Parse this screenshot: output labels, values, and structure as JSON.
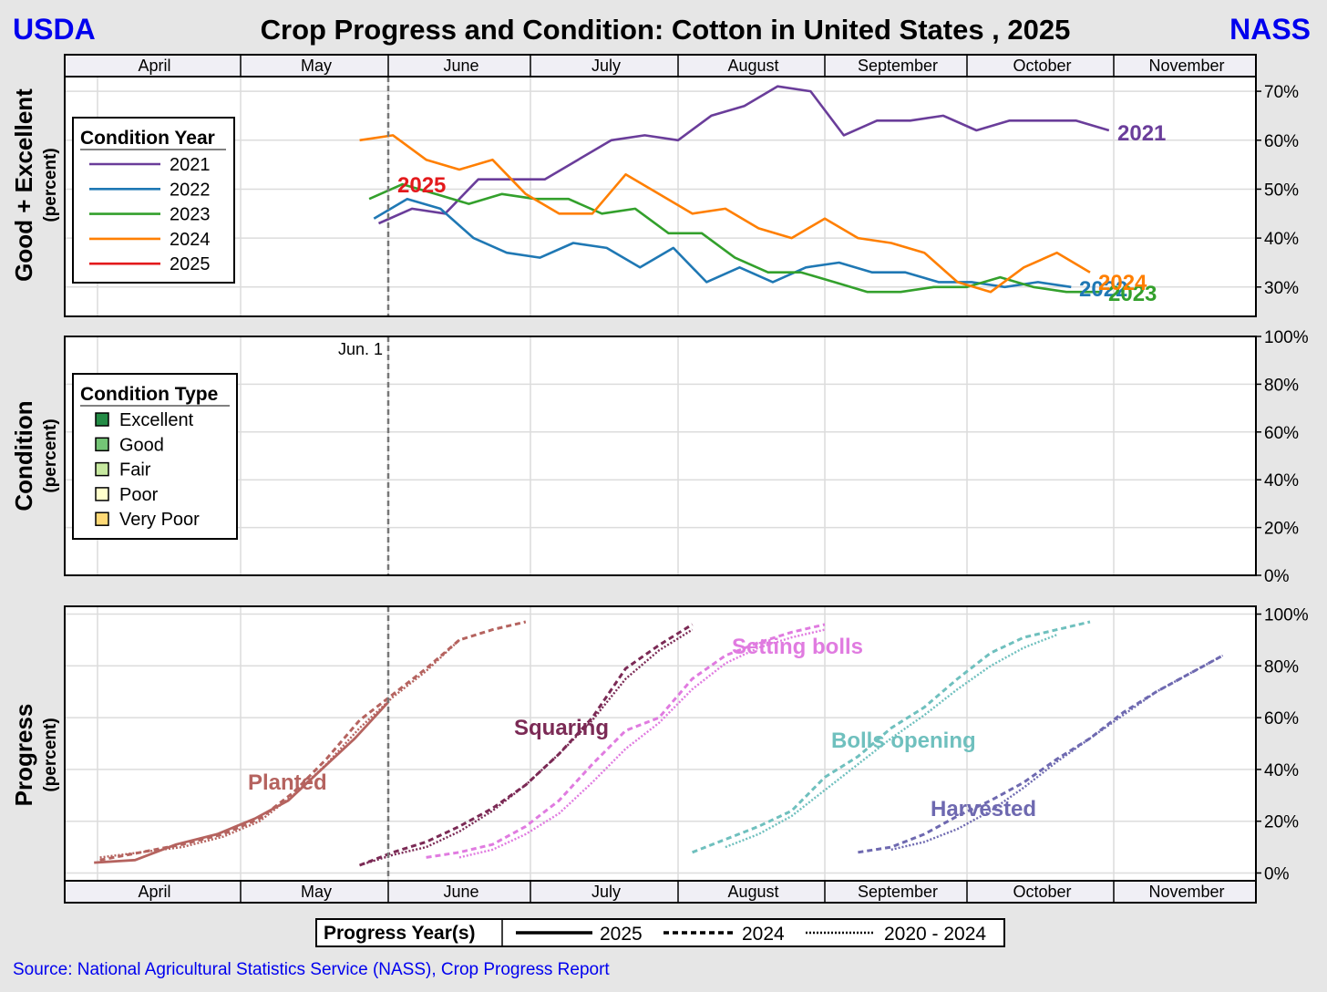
{
  "header": {
    "left_agency": "USDA",
    "title": "Crop Progress and Condition: Cotton in United States , 2025",
    "right_agency": "NASS"
  },
  "months": [
    "April",
    "May",
    "June",
    "July",
    "August",
    "September",
    "October",
    "November"
  ],
  "marker": {
    "label": "Jun.  1"
  },
  "panels": {
    "good_excellent": {
      "ylabel": "Good + Excellent",
      "sublabel": "(percent)",
      "yticks": [
        "30%",
        "40%",
        "50%",
        "60%",
        "70%"
      ]
    },
    "condition": {
      "ylabel": "Condition",
      "sublabel": "(percent)",
      "yticks": [
        "0%",
        "20%",
        "40%",
        "60%",
        "80%",
        "100%"
      ]
    },
    "progress": {
      "ylabel": "Progress",
      "sublabel": "(percent)",
      "yticks": [
        "0%",
        "20%",
        "40%",
        "60%",
        "80%",
        "100%"
      ]
    }
  },
  "legends": {
    "condition_year": {
      "title": "Condition Year",
      "items": [
        "2021",
        "2022",
        "2023",
        "2024",
        "2025"
      ]
    },
    "condition_type": {
      "title": "Condition Type",
      "items": [
        "Excellent",
        "Good",
        "Fair",
        "Poor",
        "Very Poor"
      ]
    },
    "progress_years": {
      "title": "Progress Year(s)",
      "items": [
        "2025",
        "2024",
        "2020 - 2024"
      ]
    }
  },
  "colors": {
    "2021": "#6a3d9a",
    "2022": "#1f78b4",
    "2023": "#33a02c",
    "2024": "#ff7f00",
    "2025": "#e31a1c",
    "Excellent": "#238b45",
    "Good": "#74c476",
    "Fair": "#c7e9a0",
    "Poor": "#ffffcc",
    "Very Poor": "#fed976",
    "Planted": "#b5635f",
    "Squaring": "#7b2a55",
    "Setting bolls": "#e07be0",
    "Bolls opening": "#6fc0be",
    "Harvested": "#6e69b0",
    "agency": "#0000ee",
    "source": "#0000ee"
  },
  "footer": {
    "source": "Source: National Agricultural Statistics Service (NASS), Crop Progress Report"
  },
  "chart_data": [
    {
      "type": "line",
      "title": "Good + Excellent",
      "ylabel": "Good + Excellent (percent)",
      "ylim": [
        24,
        73
      ],
      "x_unit": "week ending",
      "series": [
        {
          "name": "2021",
          "x": [
            "2021-05-30",
            "2021-06-06",
            "2021-06-13",
            "2021-06-20",
            "2021-06-27",
            "2021-07-04",
            "2021-07-11",
            "2021-07-18",
            "2021-07-25",
            "2021-08-01",
            "2021-08-08",
            "2021-08-15",
            "2021-08-22",
            "2021-08-29",
            "2021-09-05",
            "2021-09-12",
            "2021-09-19",
            "2021-09-26",
            "2021-10-03",
            "2021-10-10",
            "2021-10-17",
            "2021-10-24",
            "2021-10-31"
          ],
          "values": [
            43,
            46,
            45,
            52,
            52,
            52,
            56,
            60,
            61,
            60,
            65,
            67,
            71,
            70,
            61,
            64,
            64,
            65,
            62,
            64,
            64,
            64,
            62
          ]
        },
        {
          "name": "2022",
          "x": [
            "2022-05-29",
            "2022-06-05",
            "2022-06-12",
            "2022-06-19",
            "2022-06-26",
            "2022-07-03",
            "2022-07-10",
            "2022-07-17",
            "2022-07-24",
            "2022-07-31",
            "2022-08-07",
            "2022-08-14",
            "2022-08-21",
            "2022-08-28",
            "2022-09-04",
            "2022-09-11",
            "2022-09-18",
            "2022-09-25",
            "2022-10-02",
            "2022-10-09",
            "2022-10-16",
            "2022-10-23"
          ],
          "values": [
            44,
            48,
            46,
            40,
            37,
            36,
            39,
            38,
            34,
            38,
            31,
            34,
            31,
            34,
            35,
            33,
            33,
            31,
            31,
            30,
            31,
            30
          ]
        },
        {
          "name": "2023",
          "x": [
            "2023-05-28",
            "2023-06-04",
            "2023-06-11",
            "2023-06-18",
            "2023-06-25",
            "2023-07-02",
            "2023-07-09",
            "2023-07-16",
            "2023-07-23",
            "2023-07-30",
            "2023-08-06",
            "2023-08-13",
            "2023-08-20",
            "2023-08-27",
            "2023-09-03",
            "2023-09-10",
            "2023-09-17",
            "2023-09-24",
            "2023-10-01",
            "2023-10-08",
            "2023-10-15",
            "2023-10-22",
            "2023-10-29"
          ],
          "values": [
            48,
            51,
            49,
            47,
            49,
            48,
            48,
            45,
            46,
            41,
            41,
            36,
            33,
            33,
            31,
            29,
            29,
            30,
            30,
            32,
            30,
            29,
            29
          ]
        },
        {
          "name": "2024",
          "x": [
            "2024-05-26",
            "2024-06-02",
            "2024-06-09",
            "2024-06-16",
            "2024-06-23",
            "2024-06-30",
            "2024-07-07",
            "2024-07-14",
            "2024-07-21",
            "2024-07-28",
            "2024-08-04",
            "2024-08-11",
            "2024-08-18",
            "2024-08-25",
            "2024-09-01",
            "2024-09-08",
            "2024-09-15",
            "2024-09-22",
            "2024-09-29",
            "2024-10-06",
            "2024-10-13",
            "2024-10-20",
            "2024-10-27"
          ],
          "values": [
            60,
            61,
            56,
            54,
            56,
            49,
            45,
            45,
            53,
            49,
            45,
            46,
            42,
            40,
            44,
            40,
            39,
            37,
            31,
            29,
            34,
            37,
            33
          ]
        },
        {
          "name": "2025",
          "x": [],
          "values": []
        }
      ],
      "annotations": [
        "2021",
        "2022",
        "2023",
        "2024",
        "2025"
      ]
    },
    {
      "type": "area",
      "title": "Condition",
      "ylabel": "Condition (percent)",
      "ylim": [
        0,
        100
      ],
      "series": []
    },
    {
      "type": "line",
      "title": "Progress",
      "ylabel": "Progress (percent)",
      "ylim": [
        -3,
        103
      ],
      "x_unit": "week ending",
      "series": [
        {
          "name": "Planted",
          "year": "2025",
          "x": [
            "2025-04-06",
            "2025-04-13",
            "2025-04-20",
            "2025-04-27",
            "2025-05-04",
            "2025-05-11",
            "2025-05-18",
            "2025-05-25",
            "2025-06-01"
          ],
          "values": [
            4,
            5,
            11,
            15,
            21,
            28,
            40,
            52,
            66
          ]
        },
        {
          "name": "Planted",
          "year": "2024",
          "x": [
            "2024-04-07",
            "2024-04-14",
            "2024-04-21",
            "2024-04-28",
            "2024-05-05",
            "2024-05-12",
            "2024-05-19",
            "2024-05-26",
            "2024-06-02",
            "2024-06-09",
            "2024-06-16",
            "2024-06-23",
            "2024-06-30"
          ],
          "values": [
            5,
            8,
            11,
            15,
            21,
            31,
            44,
            59,
            69,
            79,
            90,
            94,
            97
          ]
        },
        {
          "name": "Planted",
          "year": "2020 - 2024",
          "x": [
            "2024-04-07",
            "2024-04-14",
            "2024-04-21",
            "2024-04-28",
            "2024-05-05",
            "2024-05-12",
            "2024-05-19",
            "2024-05-26",
            "2024-06-02",
            "2024-06-09",
            "2024-06-16"
          ],
          "values": [
            6,
            8,
            10,
            14,
            20,
            30,
            42,
            56,
            68,
            78,
            90
          ]
        },
        {
          "name": "Squaring",
          "year": "2024",
          "x": [
            "2024-05-26",
            "2024-06-02",
            "2024-06-09",
            "2024-06-16",
            "2024-06-23",
            "2024-06-30",
            "2024-07-07",
            "2024-07-14",
            "2024-07-21",
            "2024-07-28",
            "2024-08-04"
          ],
          "values": [
            3,
            8,
            12,
            18,
            25,
            34,
            46,
            60,
            79,
            88,
            96
          ]
        },
        {
          "name": "Squaring",
          "year": "2020 - 2024",
          "x": [
            "2024-05-26",
            "2024-06-02",
            "2024-06-09",
            "2024-06-16",
            "2024-06-23",
            "2024-06-30",
            "2024-07-07",
            "2024-07-14",
            "2024-07-21",
            "2024-07-28",
            "2024-08-04"
          ],
          "values": [
            3,
            7,
            10,
            16,
            24,
            34,
            46,
            59,
            75,
            86,
            94
          ]
        },
        {
          "name": "Setting bolls",
          "year": "2024",
          "x": [
            "2024-06-09",
            "2024-06-16",
            "2024-06-23",
            "2024-06-30",
            "2024-07-07",
            "2024-07-14",
            "2024-07-21",
            "2024-07-28",
            "2024-08-04",
            "2024-08-11",
            "2024-08-18",
            "2024-08-25",
            "2024-09-01"
          ],
          "values": [
            6,
            8,
            11,
            18,
            28,
            42,
            55,
            60,
            75,
            84,
            89,
            93,
            96
          ]
        },
        {
          "name": "Setting bolls",
          "year": "2020 - 2024",
          "x": [
            "2024-06-16",
            "2024-06-23",
            "2024-06-30",
            "2024-07-07",
            "2024-07-14",
            "2024-07-21",
            "2024-07-28",
            "2024-08-04",
            "2024-08-11",
            "2024-08-18",
            "2024-08-25",
            "2024-09-01"
          ],
          "values": [
            6,
            9,
            15,
            23,
            35,
            48,
            58,
            71,
            81,
            87,
            91,
            94
          ]
        },
        {
          "name": "Bolls opening",
          "year": "2024",
          "x": [
            "2024-08-04",
            "2024-08-11",
            "2024-08-18",
            "2024-08-25",
            "2024-09-01",
            "2024-09-08",
            "2024-09-15",
            "2024-09-22",
            "2024-09-29",
            "2024-10-06",
            "2024-10-13",
            "2024-10-20",
            "2024-10-27"
          ],
          "values": [
            8,
            13,
            18,
            24,
            37,
            45,
            56,
            64,
            75,
            85,
            91,
            94,
            97
          ]
        },
        {
          "name": "Bolls opening",
          "year": "2020 - 2024",
          "x": [
            "2024-08-11",
            "2024-08-18",
            "2024-08-25",
            "2024-09-01",
            "2024-09-08",
            "2024-09-15",
            "2024-09-22",
            "2024-09-29",
            "2024-10-06",
            "2024-10-13",
            "2024-10-20"
          ],
          "values": [
            10,
            15,
            22,
            32,
            42,
            52,
            61,
            71,
            80,
            87,
            92
          ]
        },
        {
          "name": "Harvested",
          "year": "2024",
          "x": [
            "2024-09-08",
            "2024-09-15",
            "2024-09-22",
            "2024-09-29",
            "2024-10-06",
            "2024-10-13",
            "2024-10-20",
            "2024-10-27",
            "2024-11-03",
            "2024-11-10",
            "2024-11-17",
            "2024-11-24"
          ],
          "values": [
            8,
            10,
            15,
            22,
            28,
            35,
            44,
            52,
            62,
            70,
            77,
            84
          ]
        },
        {
          "name": "Harvested",
          "year": "2020 - 2024",
          "x": [
            "2024-09-15",
            "2024-09-22",
            "2024-09-29",
            "2024-10-06",
            "2024-10-13",
            "2024-10-20",
            "2024-10-27",
            "2024-11-03",
            "2024-11-10",
            "2024-11-17",
            "2024-11-24"
          ],
          "values": [
            9,
            12,
            17,
            24,
            33,
            43,
            52,
            61,
            70,
            77,
            84
          ]
        }
      ],
      "annotations": [
        "Planted",
        "Squaring",
        "Setting bolls",
        "Bolls opening",
        "Harvested"
      ]
    }
  ]
}
